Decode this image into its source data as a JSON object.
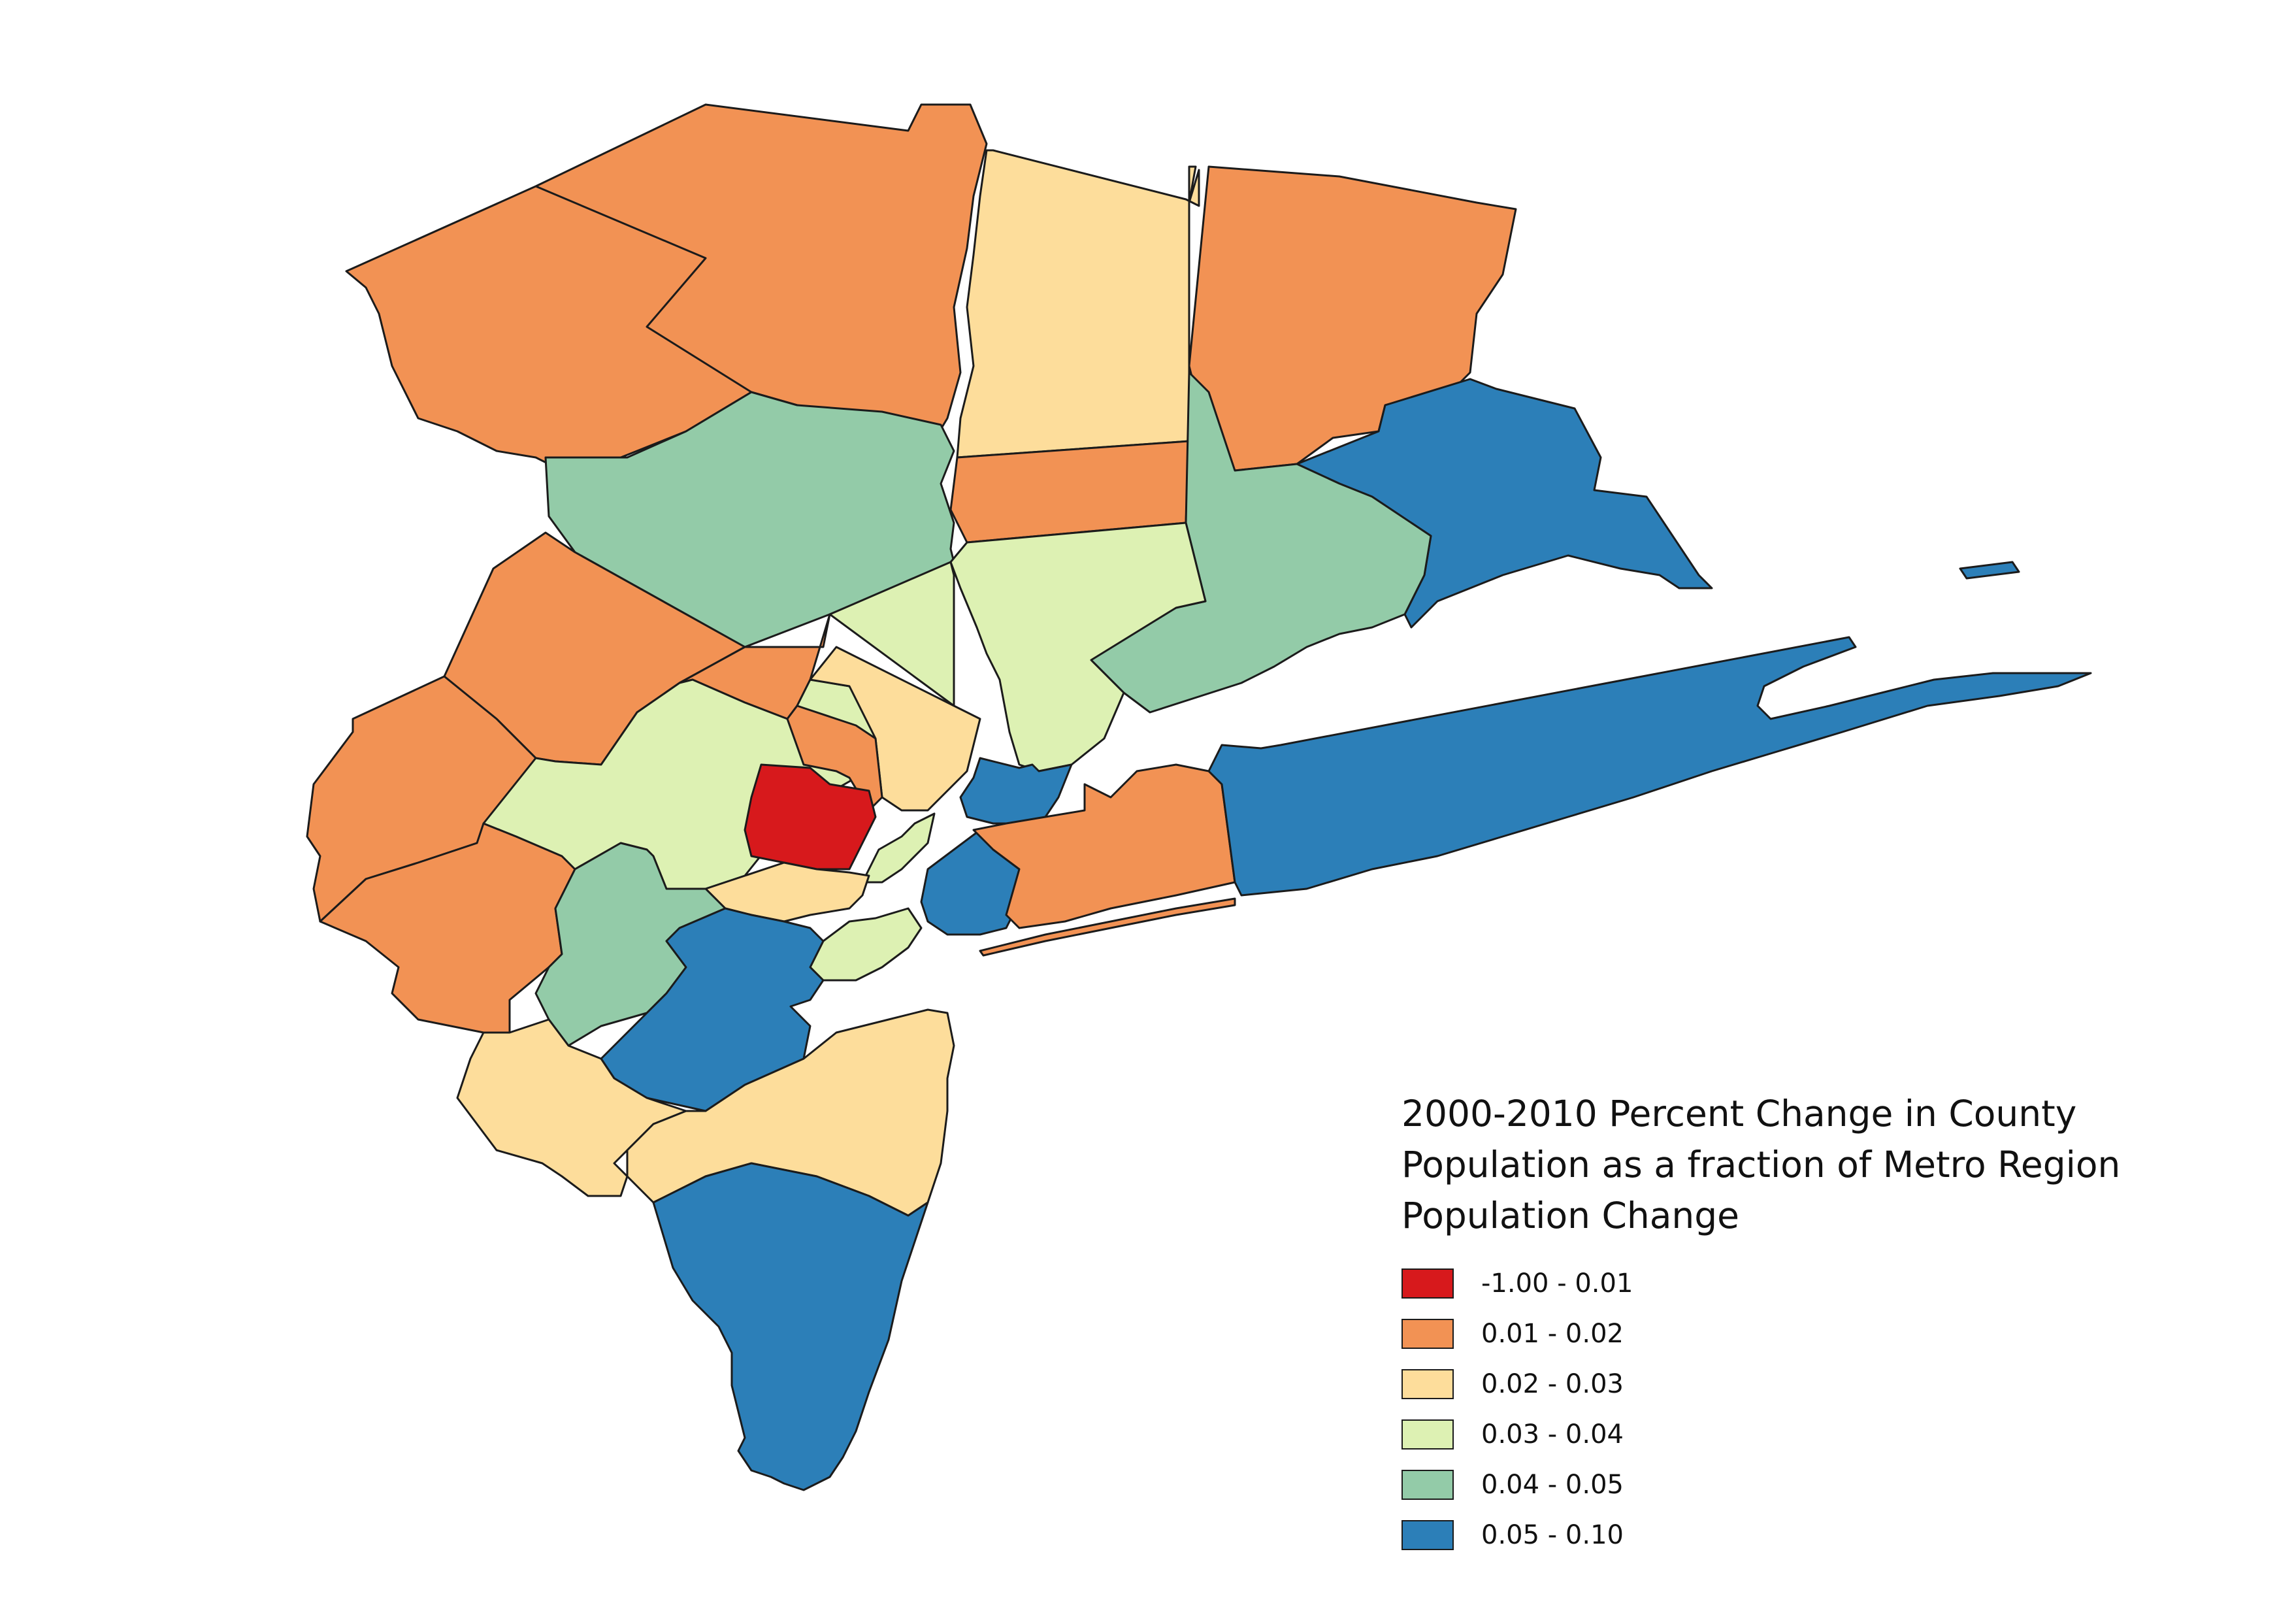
{
  "legend": {
    "title_lines": [
      "2000-2010 Percent Change in County",
      "Population as a fraction of Metro Region",
      "Population Change"
    ],
    "classes": [
      {
        "label": "-1.00 - 0.01",
        "color": "#d7191c"
      },
      {
        "label": "0.01 - 0.02",
        "color": "#f29254"
      },
      {
        "label": "0.02 - 0.03",
        "color": "#fddd9b"
      },
      {
        "label": "0.03 - 0.04",
        "color": "#ddf1b3"
      },
      {
        "label": "0.04 - 0.05",
        "color": "#93cba8"
      },
      {
        "label": "0.05 - 0.10",
        "color": "#2c7fb8"
      }
    ]
  },
  "map": {
    "water_color": "#ffffff",
    "border_color": "#1b1b1b"
  }
}
